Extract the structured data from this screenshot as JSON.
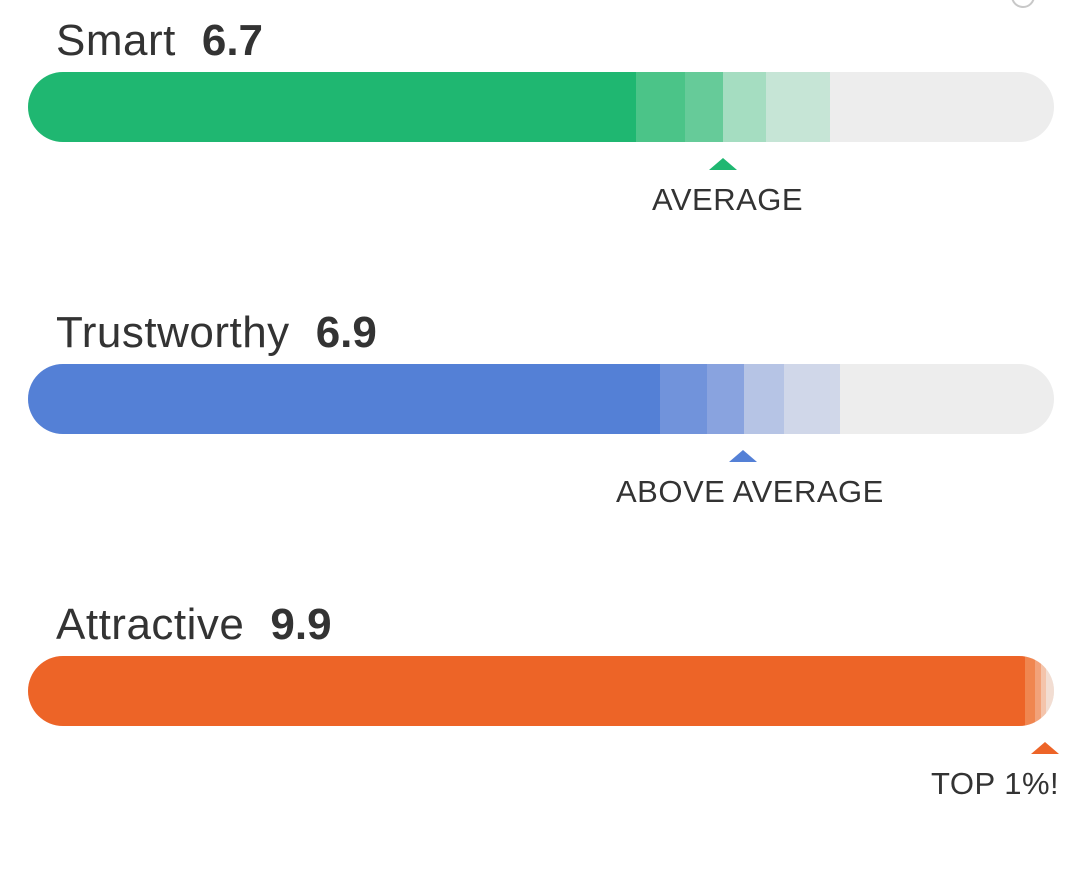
{
  "metrics": [
    {
      "name": "Smart",
      "score": "6.7",
      "rating": "AVERAGE",
      "color": "#1fb771",
      "shades": [
        "#1fb771",
        "#4bc488",
        "#66cb99",
        "#a5ddc1",
        "#c6e5d6"
      ]
    },
    {
      "name": "Trustworthy",
      "score": "6.9",
      "rating": "ABOVE AVERAGE",
      "color": "#5480d6",
      "shades": [
        "#5480d6",
        "#7193db",
        "#89a3df",
        "#b6c4e5",
        "#d0d7e9"
      ]
    },
    {
      "name": "Attractive",
      "score": "9.9",
      "rating": "TOP 1%!",
      "color": "#ed6427",
      "shades": [
        "#ed6427",
        "#f08650",
        "#f2a27a",
        "#f4c4ab",
        "#f2ddd2"
      ]
    }
  ]
}
